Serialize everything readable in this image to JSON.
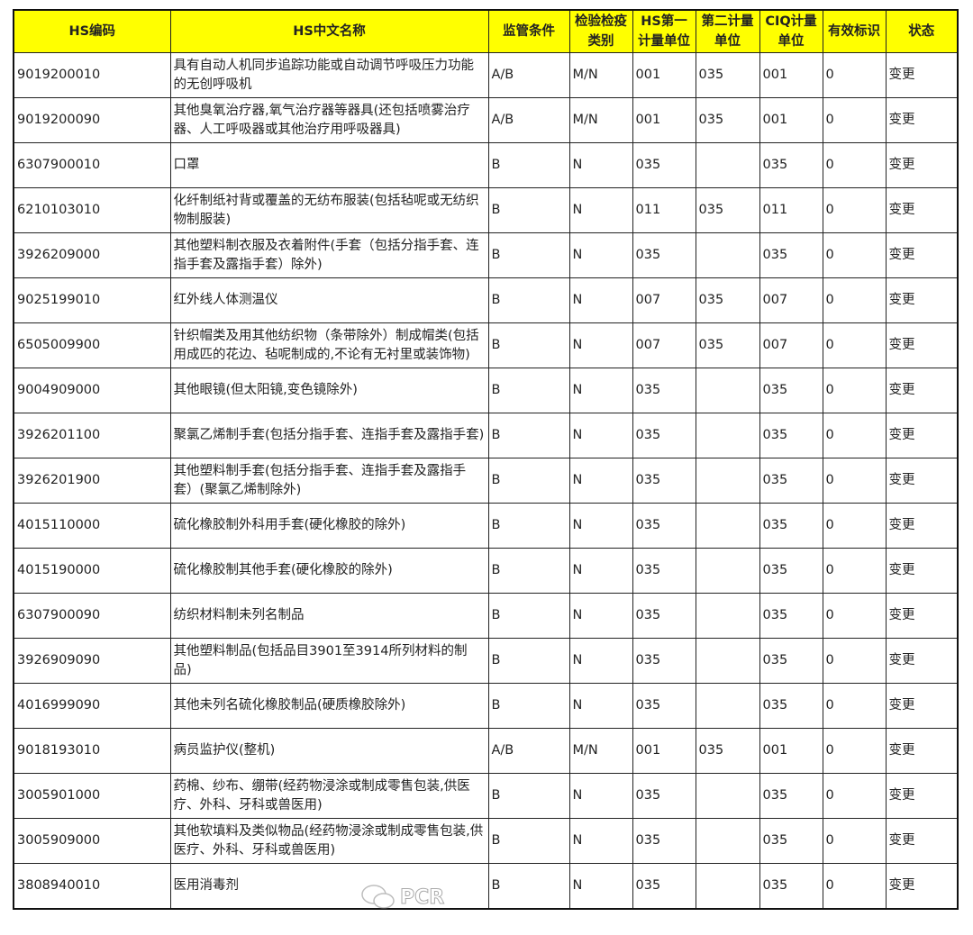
{
  "headers": [
    "HS编码",
    "HS中文名称",
    "监管条件",
    "检验检疫类别",
    "HS第一计量单位",
    "第二计量单位",
    "CIQ计量单位",
    "有效标识",
    "状态"
  ],
  "header_lines": [
    [
      "HS编码"
    ],
    [
      "HS中文名称"
    ],
    [
      "监管条件"
    ],
    [
      "检验检疫",
      "类别"
    ],
    [
      "HS第一",
      "计量单位"
    ],
    [
      "第二计量",
      "单位"
    ],
    [
      "CIQ计量",
      "单位"
    ],
    [
      "有效标识"
    ],
    [
      "状态"
    ]
  ],
  "rows": [
    [
      "9019200010",
      "具有自动人机同步追踪功能或自动调节呼吸压力功能的无创呼吸机",
      "A/B",
      "M/N",
      "001",
      "035",
      "001",
      "0",
      "变更"
    ],
    [
      "9019200090",
      "其他臭氧治疗器,氧气治疗器等器具(还包括喷雾治疗器、人工呼吸器或其他治疗用呼吸器具)",
      "A/B",
      "M/N",
      "001",
      "035",
      "001",
      "0",
      "变更"
    ],
    [
      "6307900010",
      "口罩",
      "B",
      "N",
      "035",
      "",
      "035",
      "0",
      "变更"
    ],
    [
      "6210103010",
      "化纤制纸衬背或覆盖的无纺布服装(包括毡呢或无纺织物制服装)",
      "B",
      "N",
      "011",
      "035",
      "011",
      "0",
      "变更"
    ],
    [
      "3926209000",
      "其他塑料制衣服及衣着附件(手套（包括分指手套、连指手套及露指手套）除外)",
      "B",
      "N",
      "035",
      "",
      "035",
      "0",
      "变更"
    ],
    [
      "9025199010",
      "红外线人体测温仪",
      "B",
      "N",
      "007",
      "035",
      "007",
      "0",
      "变更"
    ],
    [
      "6505009900",
      "针织帽类及用其他纺织物（条带除外）制成帽类(包括用成匹的花边、毡呢制成的,不论有无衬里或装饰物)",
      "B",
      "N",
      "007",
      "035",
      "007",
      "0",
      "变更"
    ],
    [
      "9004909000",
      "其他眼镜(但太阳镜,变色镜除外)",
      "B",
      "N",
      "035",
      "",
      "035",
      "0",
      "变更"
    ],
    [
      "3926201100",
      "聚氯乙烯制手套(包括分指手套、连指手套及露指手套)",
      "B",
      "N",
      "035",
      "",
      "035",
      "0",
      "变更"
    ],
    [
      "3926201900",
      "其他塑料制手套(包括分指手套、连指手套及露指手套）(聚氯乙烯制除外)",
      "B",
      "N",
      "035",
      "",
      "035",
      "0",
      "变更"
    ],
    [
      "4015110000",
      "硫化橡胶制外科用手套(硬化橡胶的除外)",
      "B",
      "N",
      "035",
      "",
      "035",
      "0",
      "变更"
    ],
    [
      "4015190000",
      "硫化橡胶制其他手套(硬化橡胶的除外)",
      "B",
      "N",
      "035",
      "",
      "035",
      "0",
      "变更"
    ],
    [
      "6307900090",
      "纺织材料制未列名制品",
      "B",
      "N",
      "035",
      "",
      "035",
      "0",
      "变更"
    ],
    [
      "3926909090",
      "其他塑料制品(包括品目3901至3914所列材料的制品)",
      "B",
      "N",
      "035",
      "",
      "035",
      "0",
      "变更"
    ],
    [
      "4016999090",
      "其他未列名硫化橡胶制品(硬质橡胶除外)",
      "B",
      "N",
      "035",
      "",
      "035",
      "0",
      "变更"
    ],
    [
      "9018193010",
      "病员监护仪(整机)",
      "A/B",
      "M/N",
      "001",
      "035",
      "001",
      "0",
      "变更"
    ],
    [
      "3005901000",
      "药棉、纱布、绷带(经药物浸涂或制成零售包装,供医疗、外科、牙科或兽医用)",
      "B",
      "N",
      "035",
      "",
      "035",
      "0",
      "变更"
    ],
    [
      "3005909000",
      "其他软填料及类似物品(经药物浸涂或制成零售包装,供医疗、外科、牙科或兽医用)",
      "B",
      "N",
      "035",
      "",
      "035",
      "0",
      "变更"
    ],
    [
      "3808940010",
      "医用消毒剂",
      "B",
      "N",
      "035",
      "",
      "035",
      "0",
      "变更"
    ]
  ],
  "watermark": "PCR",
  "colors": {
    "header_bg": "#ffff00"
  }
}
